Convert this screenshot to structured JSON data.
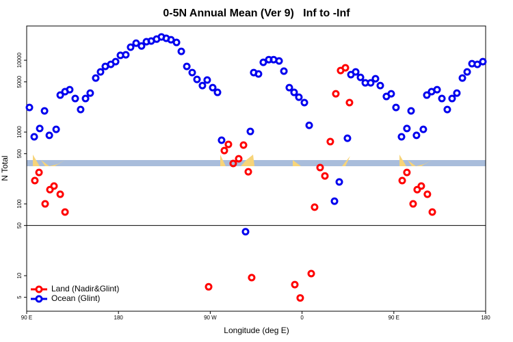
{
  "chart_data": {
    "type": "scatter",
    "title": "0-5N Annual Mean (Ver 9)   Inf to -Inf",
    "x_label": "Longitude (deg E)",
    "y_label": "N Total",
    "log_y": true,
    "xlim": [
      90,
      540
    ],
    "ylim": [
      3.2,
      30000
    ],
    "xticks": [
      {
        "value": 90,
        "label": "90 E"
      },
      180,
      {
        "value": 270,
        "label": "90 W"
      },
      {
        "value": 360,
        "label": "0"
      },
      {
        "value": 450,
        "label": "90 E"
      },
      {
        "value": 540,
        "label": "180"
      }
    ],
    "yticks": [
      5,
      10,
      50,
      100,
      500,
      1000,
      5000,
      10000
    ],
    "hline": 50,
    "legend": "lower left",
    "series": [
      {
        "name": "Land (Nadir&Glint)",
        "color": "#ff0000",
        "x": [
          98.0,
          102.1,
          108.1,
          112.8,
          116.8,
          122.9,
          127.6,
          268.4,
          283.8,
          287.8,
          292.5,
          297.9,
          302.6,
          307.3,
          310.6,
          352.9,
          358.2,
          369.0,
          372.3,
          377.7,
          382.4,
          387.7,
          393.1,
          397.8,
          402.5,
          406.5,
          458.2,
          462.8,
          468.9,
          472.9,
          476.9,
          482.9,
          487.7
        ],
        "values": [
          211,
          274,
          100,
          158,
          177,
          136,
          77,
          7.0,
          553,
          674,
          365,
          425,
          659,
          280,
          9.4,
          7.5,
          4.9,
          10.7,
          90,
          320,
          245,
          736,
          3410,
          7200,
          7850,
          2570,
          211,
          274,
          100,
          158,
          177,
          136,
          77
        ]
      },
      {
        "name": "Ocean (Glint)",
        "color": "#0000ee",
        "x": [
          92.7,
          97.4,
          102.8,
          107.5,
          112.2,
          118.9,
          122.9,
          127.6,
          132.2,
          137.6,
          142.9,
          147.7,
          152.3,
          157.7,
          162.4,
          167.1,
          172.5,
          177.2,
          181.9,
          187.2,
          191.9,
          197.3,
          202.6,
          207.4,
          212.1,
          217.4,
          222.1,
          226.8,
          231.5,
          236.9,
          241.6,
          247.0,
          252.3,
          257.0,
          262.3,
          267.0,
          272.4,
          277.1,
          281.1,
          304.6,
          309.3,
          312.6,
          317.3,
          322.0,
          327.4,
          332.1,
          337.5,
          342.2,
          347.5,
          352.2,
          356.9,
          362.3,
          367.0,
          391.8,
          396.5,
          404.5,
          407.9,
          412.6,
          417.3,
          422.0,
          427.3,
          432.0,
          436.7,
          442.7,
          447.4,
          452.1,
          457.5,
          462.8,
          466.9,
          472.2,
          478.9,
          482.3,
          487.0,
          492.4,
          497.1,
          502.4,
          507.1,
          511.8,
          517.2,
          521.9,
          526.6,
          531.9,
          537.3
        ],
        "values": [
          2200,
          860,
          1120,
          1970,
          900,
          1090,
          3270,
          3650,
          3890,
          2930,
          2060,
          2930,
          3490,
          5650,
          6880,
          8210,
          8770,
          9570,
          11700,
          11900,
          15200,
          17300,
          15800,
          18100,
          18500,
          19700,
          21100,
          20200,
          19300,
          17700,
          13300,
          8210,
          6740,
          5410,
          4440,
          5300,
          4160,
          3570,
          770,
          41,
          1020,
          6740,
          6450,
          9360,
          10200,
          10200,
          9780,
          7050,
          4160,
          3570,
          3060,
          2570,
          1240,
          109,
          202,
          820,
          6310,
          6880,
          5780,
          4850,
          4850,
          5530,
          4440,
          3130,
          3410,
          2200,
          860,
          1120,
          1970,
          900,
          1090,
          3270,
          3650,
          3890,
          2930,
          2060,
          2930,
          3490,
          5650,
          6880,
          8950,
          8770,
          9570
        ]
      }
    ]
  }
}
